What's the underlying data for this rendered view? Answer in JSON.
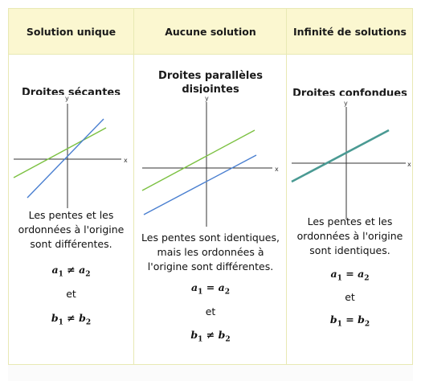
{
  "headers": [
    "Solution unique",
    "Aucune solution",
    "Infinité de solutions"
  ],
  "columns": [
    {
      "subtitle": "Droites sécantes",
      "axis_x": "x",
      "axis_y": "y",
      "description": [
        "Les pentes et les",
        "ordonnées à l'origine",
        "sont différentes."
      ],
      "eq_a": {
        "left": "a",
        "sub1": "1",
        "rel": " ≠ ",
        "right": "a",
        "sub2": "2"
      },
      "et": "et",
      "eq_b": {
        "left": "b",
        "sub1": "1",
        "rel": " ≠ ",
        "right": "b",
        "sub2": "2"
      }
    },
    {
      "subtitle": "Droites parallèles disjointes",
      "axis_x": "x",
      "axis_y": "y",
      "description": [
        "Les pentes sont identiques,",
        "mais les ordonnées à",
        "l'origine sont différentes."
      ],
      "eq_a": {
        "left": "a",
        "sub1": "1",
        "rel": " = ",
        "right": "a",
        "sub2": "2"
      },
      "et": "et",
      "eq_b": {
        "left": "b",
        "sub1": "1",
        "rel": " ≠ ",
        "right": "b",
        "sub2": "2"
      }
    },
    {
      "subtitle": "Droites confondues",
      "axis_x": "x",
      "axis_y": "y",
      "description": [
        "Les pentes et les",
        "ordonnées à l'origine",
        "sont identiques."
      ],
      "eq_a": {
        "left": "a",
        "sub1": "1",
        "rel": " = ",
        "right": "a",
        "sub2": "2"
      },
      "et": "et",
      "eq_b": {
        "left": "b",
        "sub1": "1",
        "rel": " = ",
        "right": "b",
        "sub2": "2"
      }
    }
  ],
  "colors": {
    "green": "#7cc142",
    "blue": "#4a7fd0",
    "teal": "#4a9a93",
    "axis": "#333333",
    "header_bg": "#fbf7d0",
    "border": "#e8e9b4"
  }
}
